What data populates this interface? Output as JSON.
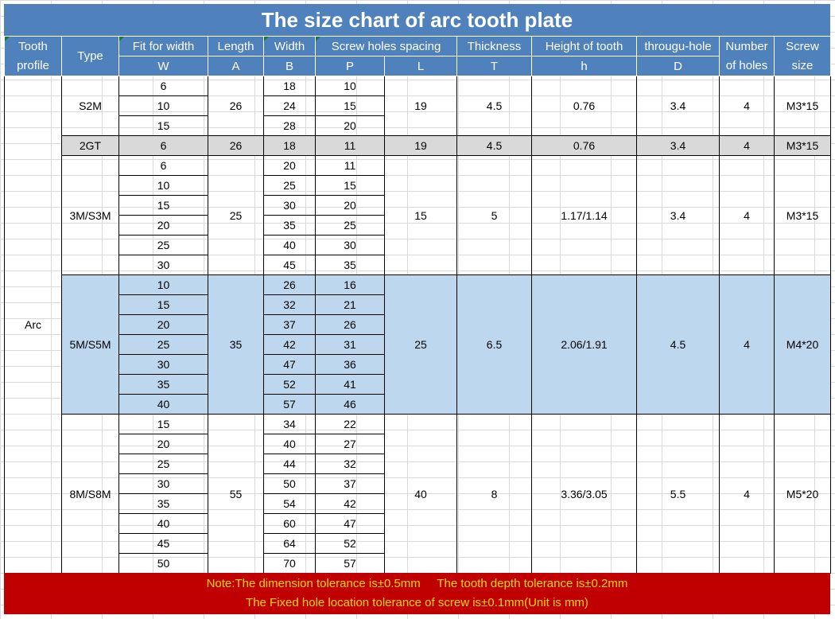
{
  "title": "The size chart of arc tooth plate",
  "headers": {
    "tooth_profile": [
      "Tooth",
      "profile"
    ],
    "type": "Type",
    "fit_width": "Fit for width",
    "fit_width_sym": "W",
    "length": "Length",
    "length_sym": "A",
    "width": "Width",
    "width_sym": "B",
    "screw_spacing": "Screw holes spacing",
    "screw_spacing_sym": "P",
    "l_sym": "L",
    "thickness_sym": "T",
    "thickness": "Thickness",
    "tooth_height": "Height of tooth",
    "tooth_height_sym": "h",
    "through_hole": "througu-hole",
    "through_hole_sym": "D",
    "num_holes": [
      "Number",
      "of holes"
    ],
    "screw_size": [
      "Screw",
      "size"
    ]
  },
  "tooth_profile_value": "Arc",
  "groups": [
    {
      "type": "S2M",
      "length": "26",
      "L": "19",
      "T": "4.5",
      "h": "0.76",
      "D": "3.4",
      "holes": "4",
      "screw": "M3*15",
      "rows": [
        {
          "W": "6",
          "B": "18",
          "P": "10"
        },
        {
          "W": "10",
          "B": "24",
          "P": "15"
        },
        {
          "W": "15",
          "B": "28",
          "P": "20"
        }
      ]
    },
    {
      "type": "2GT",
      "length": "26",
      "L": "19",
      "T": "4.5",
      "h": "0.76",
      "D": "3.4",
      "holes": "4",
      "screw": "M3*15",
      "rows": [
        {
          "W": "6",
          "B": "18",
          "P": "11"
        }
      ]
    },
    {
      "type": "3M/S3M",
      "length": "25",
      "L": "15",
      "T": "5",
      "h": "1.17/1.14",
      "D": "3.4",
      "holes": "4",
      "screw": "M3*15",
      "rows": [
        {
          "W": "6",
          "B": "20",
          "P": "11"
        },
        {
          "W": "10",
          "B": "25",
          "P": "15"
        },
        {
          "W": "15",
          "B": "30",
          "P": "20"
        },
        {
          "W": "20",
          "B": "35",
          "P": "25"
        },
        {
          "W": "25",
          "B": "40",
          "P": "30"
        },
        {
          "W": "30",
          "B": "45",
          "P": "35"
        }
      ]
    },
    {
      "type": "5M/S5M",
      "length": "35",
      "L": "25",
      "T": "6.5",
      "h": "2.06/1.91",
      "D": "4.5",
      "holes": "4",
      "screw": "M4*20",
      "rows": [
        {
          "W": "10",
          "B": "26",
          "P": "16"
        },
        {
          "W": "15",
          "B": "32",
          "P": "21"
        },
        {
          "W": "20",
          "B": "37",
          "P": "26"
        },
        {
          "W": "25",
          "B": "42",
          "P": "31"
        },
        {
          "W": "30",
          "B": "47",
          "P": "36"
        },
        {
          "W": "35",
          "B": "52",
          "P": "41"
        },
        {
          "W": "40",
          "B": "57",
          "P": "46"
        }
      ]
    },
    {
      "type": "8M/S8M",
      "length": "55",
      "L": "40",
      "T": "8",
      "h": "3.36/3.05",
      "D": "5.5",
      "holes": "4",
      "screw": "M5*20",
      "rows": [
        {
          "W": "15",
          "B": "34",
          "P": "22"
        },
        {
          "W": "20",
          "B": "40",
          "P": "27"
        },
        {
          "W": "25",
          "B": "44",
          "P": "32"
        },
        {
          "W": "30",
          "B": "50",
          "P": "37"
        },
        {
          "W": "35",
          "B": "54",
          "P": "42"
        },
        {
          "W": "40",
          "B": "60",
          "P": "47"
        },
        {
          "W": "45",
          "B": "64",
          "P": "52"
        },
        {
          "W": "50",
          "B": "70",
          "P": "57"
        }
      ]
    }
  ],
  "note": {
    "line1": "Note:The dimension tolerance is±0.5mm     The tooth depth tolerance is±0.2mm",
    "line2": "The Fixed hole location tolerance of screw is±0.1mm(Unit is mm)"
  },
  "colors": {
    "header": "#4f81bd",
    "gray_row": "#d9d9d9",
    "blue_group": "#bdd7ee",
    "note_bg": "#c00000",
    "note_text": "#ffd700"
  }
}
